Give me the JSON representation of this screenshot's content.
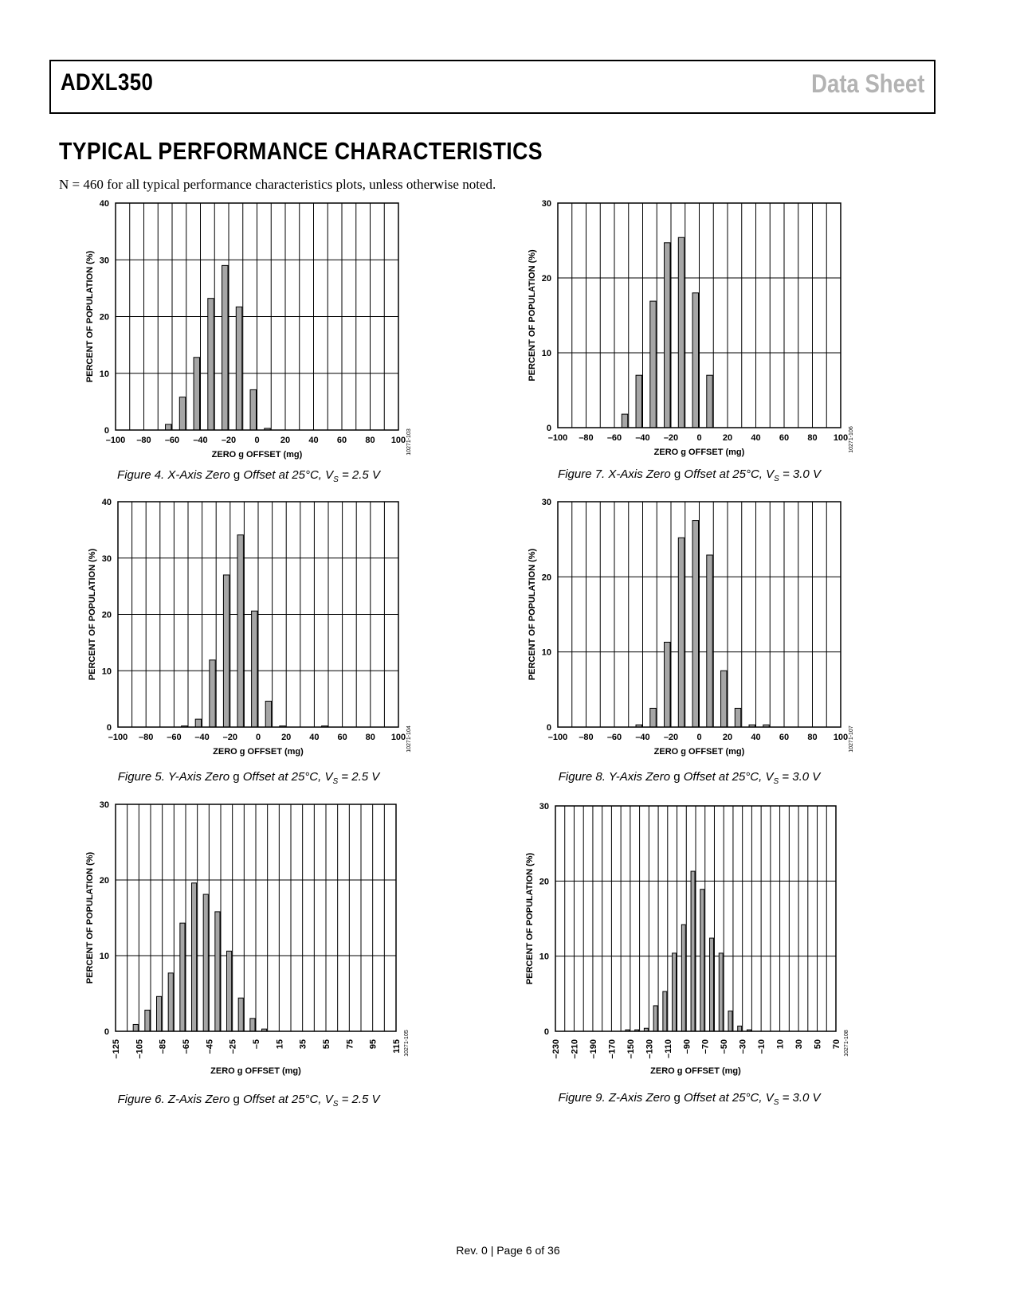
{
  "header": {
    "product": "ADXL350",
    "doc_type": "Data Sheet"
  },
  "section_title": "TYPICAL PERFORMANCE CHARACTERISTICS",
  "intro": "N = 460 for all typical performance characteristics plots, unless otherwise noted.",
  "footer": "Rev. 0 | Page 6 of 36",
  "chart_data": [
    {
      "type": "bar",
      "caption": {
        "prefix": "Figure 4. X-Axis Zero ",
        "g": "g",
        "mid": " Offset at 25°C, V",
        "sub": "S",
        "suffix": " = 2.5 V"
      },
      "xlabel": "ZERO g OFFSET (mg)",
      "ylabel": "PERCENT OF POPULATION (%)",
      "code": "10271-103",
      "xlim": [
        -100,
        100
      ],
      "ylim": [
        0,
        40
      ],
      "xticks": [
        -100,
        -80,
        -60,
        -40,
        -20,
        0,
        20,
        40,
        60,
        80,
        100
      ],
      "xtick_labels": [
        "–100",
        "–80",
        "–60",
        "–40",
        "–20",
        "0",
        "20",
        "40",
        "60",
        "80",
        "100"
      ],
      "yticks": [
        0,
        10,
        20,
        30,
        40
      ],
      "ytick_labels": [
        "0",
        "10",
        "20",
        "30",
        "40"
      ],
      "vgrid_step": 10,
      "bin_width": 10,
      "x": [
        -60,
        -50,
        -40,
        -30,
        -20,
        -10,
        0,
        10
      ],
      "values": [
        1,
        5.8,
        12.8,
        23.2,
        29,
        21.7,
        7.1,
        0.3
      ],
      "rotated_xticks": false
    },
    {
      "type": "bar",
      "caption": {
        "prefix": "Figure 5. Y-Axis Zero ",
        "g": "g",
        "mid": " Offset at 25°C, V",
        "sub": "S",
        "suffix": " = 2.5 V"
      },
      "xlabel": "ZERO g OFFSET (mg)",
      "ylabel": "PERCENT OF POPULATION (%)",
      "code": "10271-104",
      "xlim": [
        -100,
        100
      ],
      "ylim": [
        0,
        40
      ],
      "xticks": [
        -100,
        -80,
        -60,
        -40,
        -20,
        0,
        20,
        40,
        60,
        80,
        100
      ],
      "xtick_labels": [
        "–100",
        "–80",
        "–60",
        "–40",
        "–20",
        "0",
        "20",
        "40",
        "60",
        "80",
        "100"
      ],
      "yticks": [
        0,
        10,
        20,
        30,
        40
      ],
      "ytick_labels": [
        "0",
        "10",
        "20",
        "30",
        "40"
      ],
      "vgrid_step": 10,
      "bin_width": 10,
      "x": [
        -50,
        -40,
        -30,
        -20,
        -10,
        0,
        10,
        20,
        50
      ],
      "values": [
        0.2,
        1.4,
        11.9,
        27,
        34.1,
        20.6,
        4.6,
        0.2,
        0.2
      ],
      "rotated_xticks": false
    },
    {
      "type": "bar",
      "caption": {
        "prefix": "Figure 6. Z-Axis Zero ",
        "g": "g",
        "mid": " Offset at 25°C, V",
        "sub": "S",
        "suffix": " = 2.5 V"
      },
      "xlabel": "ZERO g OFFSET (mg)",
      "ylabel": "PERCENT OF POPULATION (%)",
      "code": "10271-105",
      "xlim": [
        -125,
        115
      ],
      "ylim": [
        0,
        30
      ],
      "xticks": [
        -125,
        -105,
        -85,
        -65,
        -45,
        -25,
        -5,
        15,
        35,
        55,
        75,
        95,
        115
      ],
      "xtick_labels": [
        "–125",
        "–105",
        "–85",
        "–65",
        "–45",
        "–25",
        "–5",
        "15",
        "35",
        "55",
        "75",
        "95",
        "115"
      ],
      "yticks": [
        0,
        10,
        20,
        30
      ],
      "ytick_labels": [
        "0",
        "10",
        "20",
        "30"
      ],
      "vgrid_step": 10,
      "bin_width": 10,
      "x": [
        -105,
        -95,
        -85,
        -75,
        -65,
        -55,
        -45,
        -35,
        -25,
        -15,
        -5,
        5
      ],
      "values": [
        0.9,
        2.8,
        4.6,
        7.7,
        14.3,
        19.6,
        18.1,
        15.8,
        10.6,
        4.4,
        1.7,
        0.3
      ],
      "rotated_xticks": true
    },
    {
      "type": "bar",
      "caption": {
        "prefix": "Figure 7. X-Axis Zero ",
        "g": "g",
        "mid": " Offset at 25°C, V",
        "sub": "S",
        "suffix": " = 3.0 V"
      },
      "xlabel": "ZERO g OFFSET (mg)",
      "ylabel": "PERCENT OF POPULATION (%)",
      "code": "10271-106",
      "xlim": [
        -100,
        100
      ],
      "ylim": [
        0,
        30
      ],
      "xticks": [
        -100,
        -80,
        -60,
        -40,
        -20,
        0,
        20,
        40,
        60,
        80,
        100
      ],
      "xtick_labels": [
        "–100",
        "–80",
        "–60",
        "–40",
        "–20",
        "0",
        "20",
        "40",
        "60",
        "80",
        "100"
      ],
      "yticks": [
        0,
        10,
        20,
        30
      ],
      "ytick_labels": [
        "0",
        "10",
        "20",
        "30"
      ],
      "vgrid_step": 10,
      "bin_width": 10,
      "x": [
        -50,
        -40,
        -30,
        -20,
        -10,
        0,
        10
      ],
      "values": [
        1.8,
        7,
        16.9,
        24.7,
        25.4,
        18,
        7
      ],
      "rotated_xticks": false
    },
    {
      "type": "bar",
      "caption": {
        "prefix": "Figure 8. Y-Axis Zero ",
        "g": "g",
        "mid": " Offset at 25°C, V",
        "sub": "S",
        "suffix": " = 3.0 V"
      },
      "xlabel": "ZERO g OFFSET (mg)",
      "ylabel": "PERCENT OF POPULATION (%)",
      "code": "10271-107",
      "xlim": [
        -100,
        100
      ],
      "ylim": [
        0,
        30
      ],
      "xticks": [
        -100,
        -80,
        -60,
        -40,
        -20,
        0,
        20,
        40,
        60,
        80,
        100
      ],
      "xtick_labels": [
        "–100",
        "–80",
        "–60",
        "–40",
        "–20",
        "0",
        "20",
        "40",
        "60",
        "80",
        "100"
      ],
      "yticks": [
        0,
        10,
        20,
        30
      ],
      "ytick_labels": [
        "0",
        "10",
        "20",
        "30"
      ],
      "vgrid_step": 10,
      "bin_width": 10,
      "x": [
        -40,
        -30,
        -20,
        -10,
        0,
        10,
        20,
        30,
        40,
        50
      ],
      "values": [
        0.3,
        2.5,
        11.3,
        25.2,
        27.5,
        22.9,
        7.5,
        2.5,
        0.3,
        0.3
      ],
      "rotated_xticks": false
    },
    {
      "type": "bar",
      "caption": {
        "prefix": "Figure 9. Z-Axis Zero ",
        "g": "g",
        "mid": " Offset at 25°C, V",
        "sub": "S",
        "suffix": " = 3.0 V"
      },
      "xlabel": "ZERO g OFFSET (mg)",
      "ylabel": "PERCENT OF POPULATION (%)",
      "code": "10271-108",
      "xlim": [
        -230,
        70
      ],
      "ylim": [
        0,
        30
      ],
      "xticks": [
        -230,
        -210,
        -190,
        -170,
        -150,
        -130,
        -110,
        -90,
        -70,
        -50,
        -30,
        -10,
        10,
        30,
        50,
        70
      ],
      "xtick_labels": [
        "–230",
        "–210",
        "–190",
        "–170",
        "–150",
        "–130",
        "–110",
        "–90",
        "–70",
        "–50",
        "–30",
        "–10",
        "10",
        "30",
        "50",
        "70"
      ],
      "yticks": [
        0,
        10,
        20,
        30
      ],
      "ytick_labels": [
        "0",
        "10",
        "20",
        "30"
      ],
      "vgrid_step": 10,
      "bin_width": 10,
      "x": [
        -150,
        -140,
        -130,
        -120,
        -110,
        -100,
        -90,
        -80,
        -70,
        -60,
        -50,
        -40,
        -30,
        -20
      ],
      "values": [
        0.2,
        0.2,
        0.4,
        3.4,
        5.3,
        10.4,
        14.2,
        21.3,
        18.9,
        12.4,
        10.4,
        2.7,
        0.7,
        0.2
      ],
      "rotated_xticks": true
    }
  ]
}
